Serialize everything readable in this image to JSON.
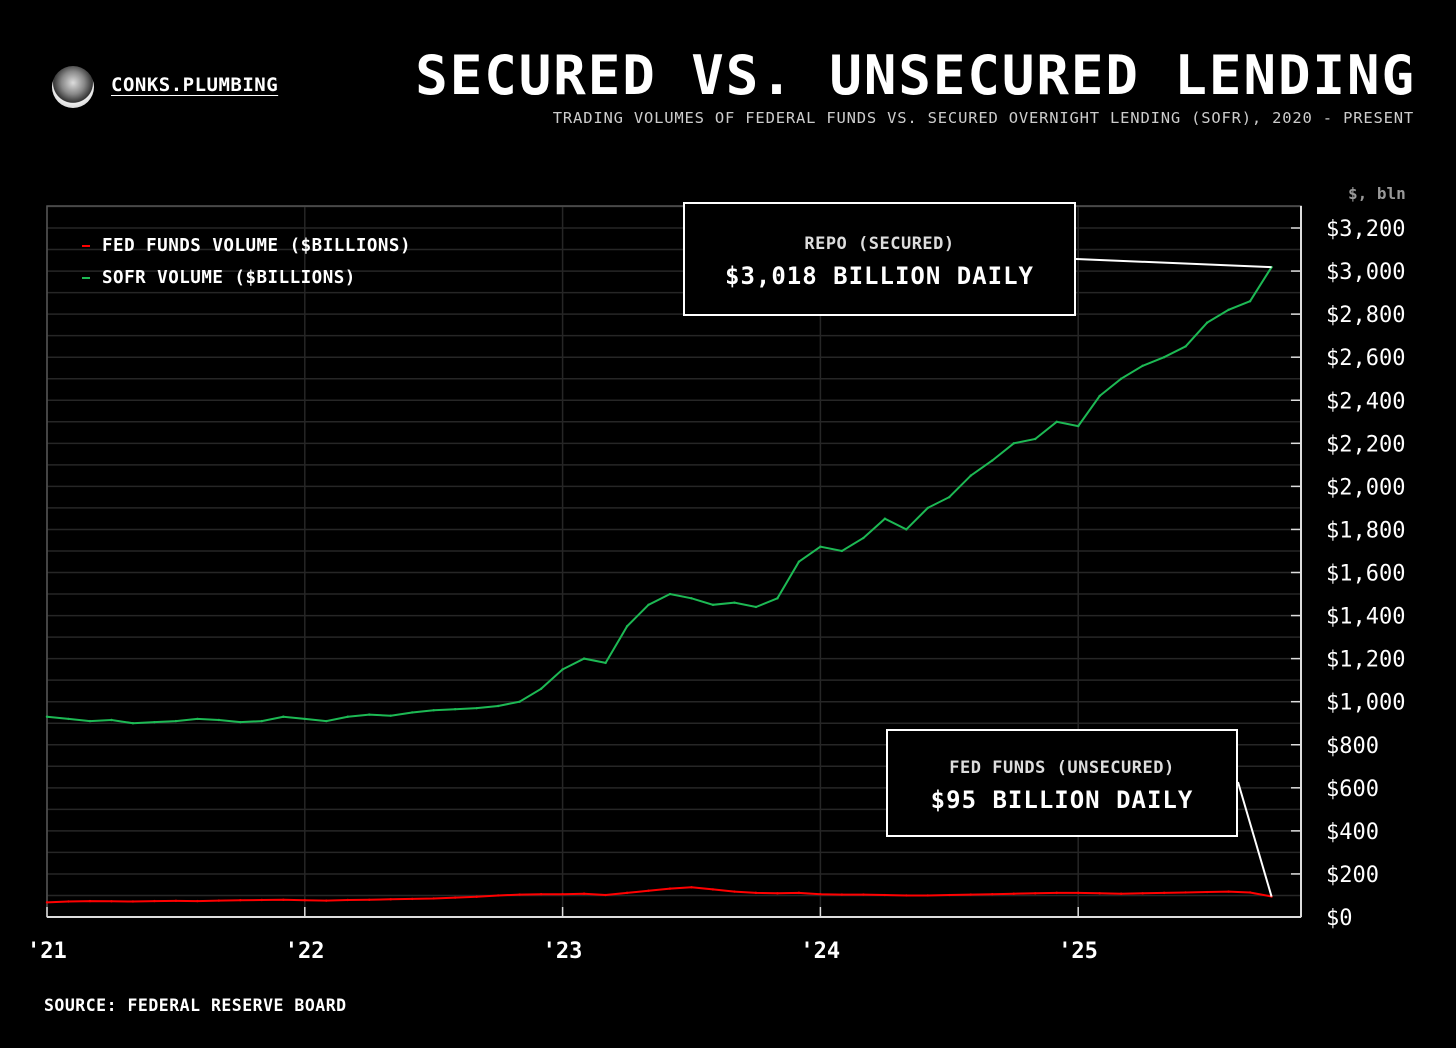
{
  "header": {
    "brand": "CONKS.PLUMBING",
    "title": "SECURED VS. UNSECURED LENDING",
    "subtitle": "TRADING VOLUMES OF FEDERAL FUNDS VS. SECURED OVERNIGHT LENDING (SOFR), 2020 - PRESENT"
  },
  "footer": {
    "source": "SOURCE: FEDERAL RESERVE BOARD"
  },
  "annotations": {
    "repo": {
      "label": "REPO (SECURED)",
      "value": "$3,018 BILLION DAILY"
    },
    "fed": {
      "label": "FED FUNDS (UNSECURED)",
      "value": "$95 BILLION DAILY"
    }
  },
  "chart_data": {
    "type": "line",
    "title": "SECURED VS. UNSECURED LENDING",
    "ylabel": "$, bln",
    "ylim": [
      0,
      3300
    ],
    "yticks": [
      0,
      200,
      400,
      600,
      800,
      1000,
      1200,
      1400,
      1600,
      1800,
      2000,
      2200,
      2400,
      2600,
      2800,
      3000,
      3200
    ],
    "ytick_labels": [
      "$0",
      "$200",
      "$400",
      "$600",
      "$800",
      "$1,000",
      "$1,200",
      "$1,400",
      "$1,600",
      "$1,800",
      "$2,000",
      "$2,200",
      "$2,400",
      "$2,600",
      "$2,800",
      "$3,000",
      "$3,200"
    ],
    "xticks": [
      "2021-01",
      "2022-01",
      "2023-01",
      "2024-01",
      "2025-01"
    ],
    "xtick_labels": [
      "'21",
      "'22",
      "'23",
      "'24",
      "'25"
    ],
    "grid": true,
    "legend_position": "top-left",
    "x": [
      "2021-01",
      "2021-02",
      "2021-03",
      "2021-04",
      "2021-05",
      "2021-06",
      "2021-07",
      "2021-08",
      "2021-09",
      "2021-10",
      "2021-11",
      "2021-12",
      "2022-01",
      "2022-02",
      "2022-03",
      "2022-04",
      "2022-05",
      "2022-06",
      "2022-07",
      "2022-08",
      "2022-09",
      "2022-10",
      "2022-11",
      "2022-12",
      "2023-01",
      "2023-02",
      "2023-03",
      "2023-04",
      "2023-05",
      "2023-06",
      "2023-07",
      "2023-08",
      "2023-09",
      "2023-10",
      "2023-11",
      "2023-12",
      "2024-01",
      "2024-02",
      "2024-03",
      "2024-04",
      "2024-05",
      "2024-06",
      "2024-07",
      "2024-08",
      "2024-09",
      "2024-10",
      "2024-11",
      "2024-12",
      "2025-01",
      "2025-02",
      "2025-03",
      "2025-04",
      "2025-05",
      "2025-06",
      "2025-07",
      "2025-08",
      "2025-09",
      "2025-10"
    ],
    "series": [
      {
        "name": "FED FUNDS VOLUME ($BILLIONS)",
        "color": "#ff0000",
        "values": [
          68,
          72,
          74,
          73,
          72,
          74,
          75,
          74,
          76,
          78,
          79,
          80,
          78,
          76,
          79,
          80,
          82,
          84,
          86,
          90,
          94,
          100,
          104,
          106,
          106,
          108,
          102,
          112,
          122,
          132,
          138,
          128,
          118,
          112,
          110,
          112,
          106,
          104,
          104,
          102,
          100,
          100,
          102,
          104,
          106,
          108,
          110,
          112,
          112,
          110,
          108,
          110,
          112,
          114,
          116,
          118,
          114,
          95
        ]
      },
      {
        "name": "SOFR VOLUME ($BILLIONS)",
        "color": "#1db954",
        "values": [
          930,
          920,
          910,
          915,
          900,
          905,
          910,
          920,
          915,
          905,
          910,
          930,
          920,
          910,
          930,
          940,
          935,
          950,
          960,
          965,
          970,
          980,
          1000,
          1060,
          1150,
          1200,
          1180,
          1350,
          1450,
          1500,
          1480,
          1450,
          1460,
          1440,
          1480,
          1650,
          1720,
          1700,
          1760,
          1850,
          1800,
          1900,
          1950,
          2050,
          2120,
          2200,
          2220,
          2300,
          2280,
          2420,
          2500,
          2560,
          2600,
          2650,
          2760,
          2820,
          2860,
          3018
        ]
      }
    ]
  }
}
